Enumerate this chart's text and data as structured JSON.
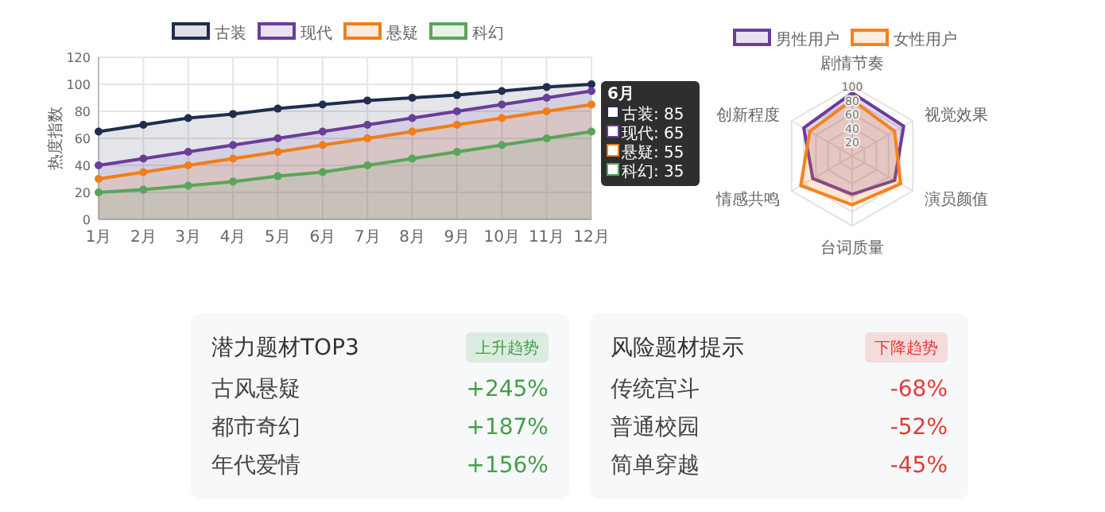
{
  "chart_data": [
    {
      "type": "area",
      "ylabel": "热度指数",
      "categories": [
        "1月",
        "2月",
        "3月",
        "4月",
        "5月",
        "6月",
        "7月",
        "8月",
        "9月",
        "10月",
        "11月",
        "12月"
      ],
      "ylim": [
        0,
        120
      ],
      "yticks": [
        0,
        20,
        40,
        60,
        80,
        100,
        120
      ],
      "grid": true,
      "legend": "top",
      "marker": "circle",
      "series": [
        {
          "name": "古装",
          "color": "#1f2d4e",
          "values": [
            65,
            70,
            75,
            78,
            82,
            85,
            88,
            90,
            92,
            95,
            98,
            100
          ]
        },
        {
          "name": "现代",
          "color": "#6a3d9a",
          "values": [
            40,
            45,
            50,
            55,
            60,
            65,
            70,
            75,
            80,
            85,
            90,
            95
          ]
        },
        {
          "name": "悬疑",
          "color": "#f07d1a",
          "values": [
            30,
            35,
            40,
            45,
            50,
            55,
            60,
            65,
            70,
            75,
            80,
            85
          ]
        },
        {
          "name": "科幻",
          "color": "#5aa55a",
          "values": [
            20,
            22,
            25,
            28,
            32,
            35,
            40,
            45,
            50,
            55,
            60,
            65
          ]
        }
      ],
      "annotations": [
        "6月",
        "古装: 85",
        "现代: 65",
        "悬疑: 55",
        "科幻: 35"
      ]
    },
    {
      "type": "radar",
      "categories": [
        "剧情节奏",
        "视觉效果",
        "演员颜值",
        "台词质量",
        "情感共鸣",
        "创新程度"
      ],
      "ylim": [
        0,
        100
      ],
      "yticks": [
        20,
        40,
        60,
        80,
        100
      ],
      "legend": "top",
      "series": [
        {
          "name": "男性用户",
          "color": "#6a3d9a",
          "values": [
            90,
            85,
            70,
            55,
            65,
            80
          ]
        },
        {
          "name": "女性用户",
          "color": "#f58220",
          "values": [
            80,
            70,
            80,
            70,
            85,
            70
          ]
        }
      ]
    },
    {
      "type": "other",
      "title": "潜力题材TOP3",
      "subtitle": "上升趋势",
      "categories": [
        "古风悬疑",
        "都市奇幻",
        "年代爱情"
      ],
      "value_labels": [
        "+245%",
        "+187%",
        "+156%"
      ],
      "color": "#43a047"
    },
    {
      "type": "other",
      "title": "风险题材提示",
      "subtitle": "下降趋势",
      "categories": [
        "传统宫斗",
        "普通校园",
        "简单穿越"
      ],
      "value_labels": [
        "-68%",
        "-52%",
        "-45%"
      ],
      "color": "#e53935"
    }
  ]
}
